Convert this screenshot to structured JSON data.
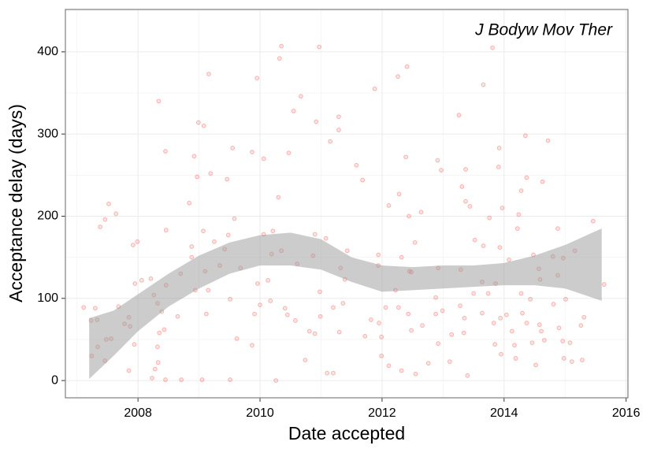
{
  "chart_data": {
    "type": "scatter",
    "annotation": "J Bodyw Mov Ther",
    "x_label": "Date accepted",
    "y_label": "Acceptance delay (days)",
    "xlim": [
      2006.81,
      2016.03
    ],
    "ylim": [
      -21,
      451.6
    ],
    "xticks": [
      2008,
      2010,
      2012,
      2014,
      2016
    ],
    "yticks": [
      0,
      100,
      200,
      300,
      400
    ],
    "x_minor_ticks": [
      2007,
      2009,
      2011,
      2013,
      2015
    ],
    "y_minor_ticks": [
      50,
      150,
      250,
      350,
      450
    ],
    "grid": true,
    "series": [
      {
        "color": "#e8413a",
        "x": [
          2010.35,
          2010.97,
          2013.81,
          2010.32,
          2012.41,
          2012.26,
          2009.16,
          2009.95,
          2013.66,
          2011.88,
          2010.67,
          2008.34,
          2010.55,
          2013.26,
          2011.29,
          2008.99,
          2010.92,
          2009.08,
          2011.29,
          2014.35,
          2009.55,
          2013.92,
          2011.15,
          2014.72,
          2008.45,
          2008.92,
          2009.87,
          2010.47,
          2012.39,
          2012.91,
          2010.06,
          2011.58,
          2013.37,
          2013.91,
          2012.97,
          2009.19,
          2008.97,
          2014.37,
          2009.46,
          2011.68,
          2014.63,
          2013.31,
          2014.28,
          2012.28,
          2010.3,
          2008.84,
          2013.37,
          2012.11,
          2007.52,
          2013.44,
          2013.97,
          2007.64,
          2007.46,
          2009.58,
          2012.64,
          2012.44,
          2013.76,
          2014.24,
          2015.46,
          2007.38,
          2008.46,
          2009.07,
          2010.21,
          2010.9,
          2014.22,
          2014.88,
          2009.48,
          2010.06,
          2007.99,
          2007.92,
          2009.25,
          2011.08,
          2013.52,
          2012.54,
          2008.88,
          2009.42,
          2010.35,
          2011.43,
          2013.93,
          2013.66,
          2015.16,
          2011.94,
          2012.32,
          2014.8,
          2014.97,
          2008.88,
          2010.87,
          2010.61,
          2009.68,
          2011.32,
          2011.94,
          2012.45,
          2012.92,
          2013.29,
          2014.57,
          2009.1,
          2008.7,
          2008.06,
          2008.46,
          2008.21,
          2007.95,
          2007.11,
          2007.3,
          2007.33,
          2007.23,
          2007.68,
          2007.78,
          2007.85,
          2007.87,
          2007.34,
          2007.24,
          2007.46,
          2007.48,
          2007.56,
          2007.85,
          2007.94,
          2008.26,
          2008.32,
          2008.39,
          2008.35,
          2008.32,
          2008.33,
          2008.28,
          2008.23,
          2008.45,
          2008.71,
          2008.43,
          2008.65,
          2009.12,
          2009.05,
          2009.51,
          2009.51,
          2009.62,
          2009.87,
          2009.96,
          2009.91,
          2010.0,
          2010.13,
          2010.17,
          2010.26,
          2010.41,
          2010.45,
          2010.58,
          2010.74,
          2010.81,
          2010.9,
          2010.99,
          2011.1,
          2011.2,
          2011.2,
          2011.3,
          2011.36,
          2011.72,
          2011.82,
          2011.95,
          2011.99,
          2012.06,
          2011.99,
          2012.11,
          2012.22,
          2012.27,
          2012.32,
          2012.43,
          2012.48,
          2012.55,
          2012.66,
          2012.76,
          2012.88,
          2012.92,
          2012.99,
          2013.14,
          2013.11,
          2013.28,
          2013.35,
          2013.34,
          2013.4,
          2013.5,
          2013.64,
          2013.74,
          2013.83,
          2013.85,
          2013.94,
          2013.95,
          2014.04,
          2014.13,
          2014.17,
          2014.19,
          2014.3,
          2014.37,
          2014.43,
          2014.46,
          2014.52,
          2014.58,
          2014.61,
          2014.66,
          2014.81,
          2014.9,
          2014.96,
          2014.98,
          2015.01,
          2015.08,
          2015.11,
          2015.26,
          2015.31,
          2015.28,
          2015.64,
          2014.59,
          2014.28,
          2014.08,
          2013.86,
          2013.64,
          2014.48,
          2014.88,
          2012.88,
          2012.48,
          2011.39,
          2010.98,
          2010.19,
          2009.34,
          2009.15,
          2008.94
        ],
        "values": [
          407,
          406,
          405,
          392,
          382,
          370,
          373,
          368,
          360,
          355,
          346,
          340,
          328,
          323,
          321,
          314,
          315,
          310,
          305,
          298,
          283,
          283,
          291,
          292,
          279,
          273,
          278,
          277,
          272,
          268,
          270,
          262,
          257,
          260,
          256,
          252,
          248,
          247,
          245,
          244,
          242,
          236,
          231,
          227,
          223,
          216,
          218,
          213,
          215,
          212,
          210,
          203,
          196,
          197,
          205,
          200,
          198,
          202,
          194,
          187,
          183,
          182,
          182,
          178,
          185,
          185,
          177,
          178,
          169,
          165,
          169,
          173,
          171,
          168,
          163,
          160,
          158,
          158,
          162,
          164,
          158,
          153,
          150,
          151,
          149,
          150,
          152,
          142,
          137,
          137,
          140,
          133,
          137,
          135,
          136,
          133,
          130,
          122,
          116,
          124,
          118,
          89,
          88,
          74,
          73,
          90,
          69,
          77,
          66,
          41,
          30,
          24,
          50,
          51,
          12,
          44,
          104,
          94,
          84,
          58,
          41,
          22,
          14,
          3,
          1,
          1,
          62,
          78,
          81,
          1,
          1,
          99,
          51,
          43,
          118,
          81,
          92,
          122,
          97,
          0,
          88,
          80,
          73,
          25,
          60,
          57,
          78,
          9,
          9,
          89,
          59,
          94,
          54,
          74,
          70,
          53,
          89,
          30,
          18,
          110,
          89,
          12,
          81,
          61,
          8,
          67,
          21,
          81,
          45,
          85,
          56,
          23,
          91,
          76,
          58,
          6,
          106,
          82,
          106,
          70,
          44,
          76,
          32,
          80,
          60,
          43,
          27,
          82,
          70,
          99,
          46,
          19,
          68,
          60,
          49,
          93,
          64,
          48,
          27,
          99,
          46,
          23,
          67,
          77,
          25,
          117,
          123,
          106,
          147,
          118,
          120,
          153,
          128,
          101,
          132,
          123,
          108,
          154,
          140,
          110,
          110
        ]
      }
    ],
    "band": {
      "color": "#999999",
      "x": [
        2007.2,
        2007.6,
        2008.0,
        2008.5,
        2009.0,
        2009.5,
        2010.0,
        2010.5,
        2011.0,
        2011.5,
        2012.0,
        2012.5,
        2013.0,
        2013.5,
        2014.0,
        2014.5,
        2015.0,
        2015.6
      ],
      "lower": [
        2,
        30,
        60,
        90,
        112,
        130,
        140,
        140,
        135,
        120,
        108,
        110,
        112,
        114,
        116,
        116,
        112,
        97
      ],
      "upper": [
        76,
        85,
        105,
        130,
        152,
        168,
        177,
        180,
        172,
        150,
        140,
        138,
        140,
        140,
        143,
        152,
        165,
        185
      ]
    }
  }
}
